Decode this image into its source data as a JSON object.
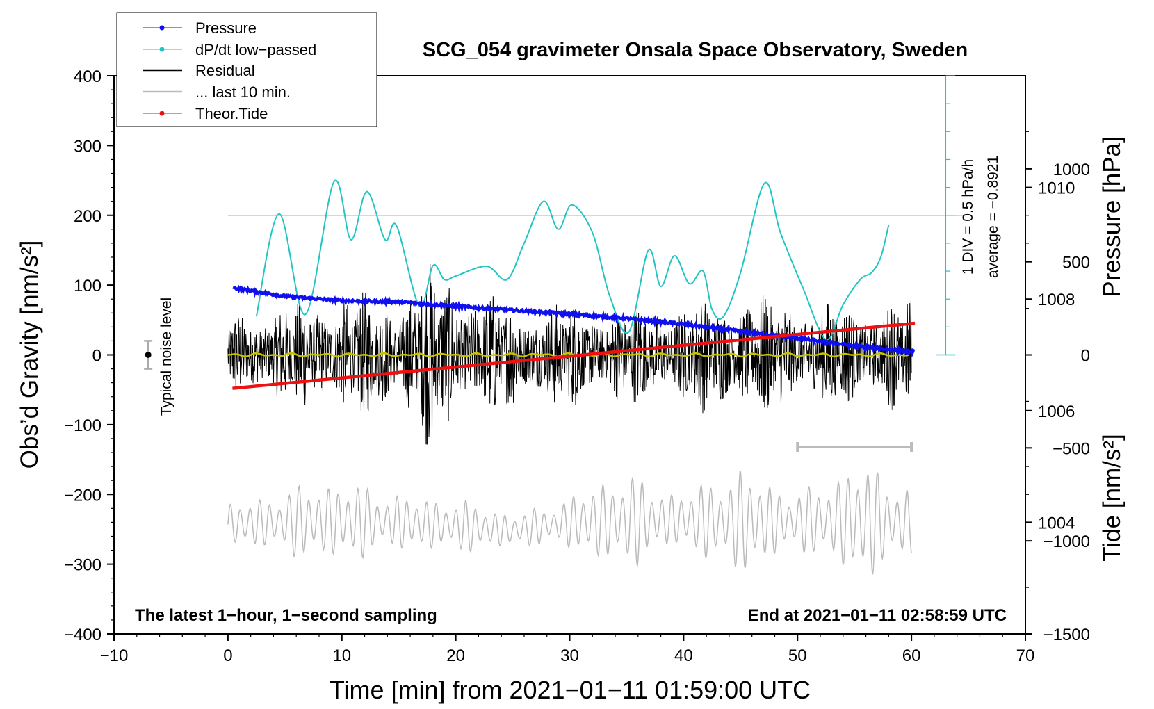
{
  "chart_data": {
    "type": "line",
    "title": "SCG_054 gravimeter Onsala Space Observatory, Sweden",
    "xlabel": "Time [min] from 2021−01−11 01:59:00 UTC",
    "ylabel": "Obs’d Gravity [nm/s²]",
    "y2_pressure_label": "Pressure [hPa]",
    "y2_tide_label": "Tide [nm/s²]",
    "xlim": [
      -10,
      70
    ],
    "ylim": [
      -400,
      400
    ],
    "pressure_lim": [
      1002,
      1012
    ],
    "tide_lim": [
      -1500,
      1500
    ],
    "x_ticks": [
      -10,
      0,
      10,
      20,
      30,
      40,
      50,
      60,
      70
    ],
    "x_tick_labels": [
      "−10",
      "0",
      "10",
      "20",
      "30",
      "40",
      "50",
      "60",
      "70"
    ],
    "y_ticks": [
      400,
      300,
      200,
      100,
      0,
      -100,
      -200,
      -300,
      -400
    ],
    "y_tick_labels": [
      "400",
      "300",
      "200",
      "100",
      "0",
      "−100",
      "−200",
      "−300",
      "−400"
    ],
    "pressure_ticks": [
      1010,
      1008,
      1006,
      1004
    ],
    "pressure_tick_labels": [
      "1010",
      "1008",
      "1006",
      "1004"
    ],
    "tide_ticks": [
      1000,
      500,
      0,
      -500,
      -1000,
      -1500
    ],
    "tide_tick_labels": [
      "1000",
      "500",
      "0",
      "−500",
      "−1000",
      "−1500"
    ],
    "legend": {
      "position": "top-left",
      "entries": [
        {
          "label": "Pressure",
          "color": "#1010ee",
          "marker": true
        },
        {
          "label": "dP/dt low−passed",
          "color": "#22c4c4",
          "marker": true
        },
        {
          "label": "Residual",
          "color": "#000000",
          "marker": false
        },
        {
          "label": "... last 10 min.",
          "color": "#bbbbbb",
          "marker": false
        },
        {
          "label": "Theor.Tide",
          "color": "#ee1111",
          "marker": true
        }
      ]
    },
    "series": [
      {
        "name": "Pressure",
        "axis": "pressure",
        "color": "#1010ee",
        "x": [
          0.5,
          5,
          10,
          15,
          20,
          25,
          30,
          35,
          40,
          45,
          50,
          55,
          60.3
        ],
        "values": [
          1008.2,
          1008.05,
          1007.97,
          1007.95,
          1007.87,
          1007.8,
          1007.73,
          1007.65,
          1007.55,
          1007.42,
          1007.3,
          1007.16,
          1007.05
        ]
      },
      {
        "name": "dP/dt low−passed",
        "axis": "gravity",
        "color": "#22c4c4",
        "x": [
          2.5,
          4.5,
          6.8,
          9.3,
          10.8,
          12.2,
          13.8,
          14.8,
          16.8,
          18,
          19,
          20,
          22.7,
          24.5,
          26,
          27.7,
          29,
          30.2,
          32,
          33.5,
          35.2,
          36.9,
          38,
          39.2,
          40.5,
          41.7,
          42.5,
          43.5,
          45,
          47.1,
          48.5,
          50.5,
          52.5,
          54,
          55.5,
          56.5,
          57.3,
          58
        ],
        "values": [
          55,
          202,
          58,
          248,
          165,
          234,
          165,
          185,
          70,
          128,
          108,
          113,
          127,
          108,
          160,
          220,
          180,
          215,
          175,
          85,
          33,
          150,
          98,
          142,
          102,
          120,
          65,
          55,
          118,
          246,
          175,
          95,
          22,
          72,
          108,
          118,
          140,
          186
        ]
      },
      {
        "name": "dP/dt average",
        "axis": "gravity",
        "color": "#22c4c4",
        "x": [
          0,
          64.5
        ],
        "values": [
          200,
          200
        ]
      },
      {
        "name": "Residual",
        "axis": "gravity",
        "color": "#000000",
        "x": [
          0,
          5,
          10,
          15,
          18,
          20,
          25,
          30,
          35,
          40,
          45,
          50,
          55,
          60
        ],
        "envelope_pm": [
          65,
          80,
          95,
          90,
          145,
          110,
          85,
          80,
          75,
          80,
          95,
          85,
          80,
          90
        ]
      },
      {
        "name": "Residual low−passed",
        "axis": "gravity",
        "color": "#c8c200",
        "x": [
          0,
          30,
          60
        ],
        "values": [
          0,
          0,
          0
        ]
      },
      {
        "name": "... last 10 min.",
        "axis": "gravity",
        "color": "#bbbbbb",
        "x": [
          0,
          5,
          10,
          15,
          20,
          25,
          30,
          35,
          40,
          45,
          50,
          55,
          60
        ],
        "center": [
          -243,
          -240,
          -238,
          -240,
          -245,
          -252,
          -240,
          -238,
          -236,
          -240,
          -238,
          -238,
          -240
        ],
        "envelope_pm": [
          35,
          60,
          60,
          55,
          40,
          30,
          45,
          75,
          55,
          80,
          55,
          95,
          55
        ]
      },
      {
        "name": "Theor.Tide",
        "axis": "tide",
        "color": "#ee1111",
        "x": [
          0.4,
          60.3
        ],
        "values": [
          -180,
          170
        ]
      }
    ],
    "annotations": {
      "left_note": "The latest 1−hour, 1−second sampling",
      "right_note": "End at 2021−01−11 02:58:59 UTC",
      "noise_label": "Typical noise level",
      "noise_marker": {
        "x": -7,
        "y": 0,
        "error_pm": 20
      },
      "div_label": "1 DIV = 0.5 hPa/h",
      "average_label": "average = −0.8921",
      "last10_bar_x": [
        50,
        60
      ]
    }
  }
}
